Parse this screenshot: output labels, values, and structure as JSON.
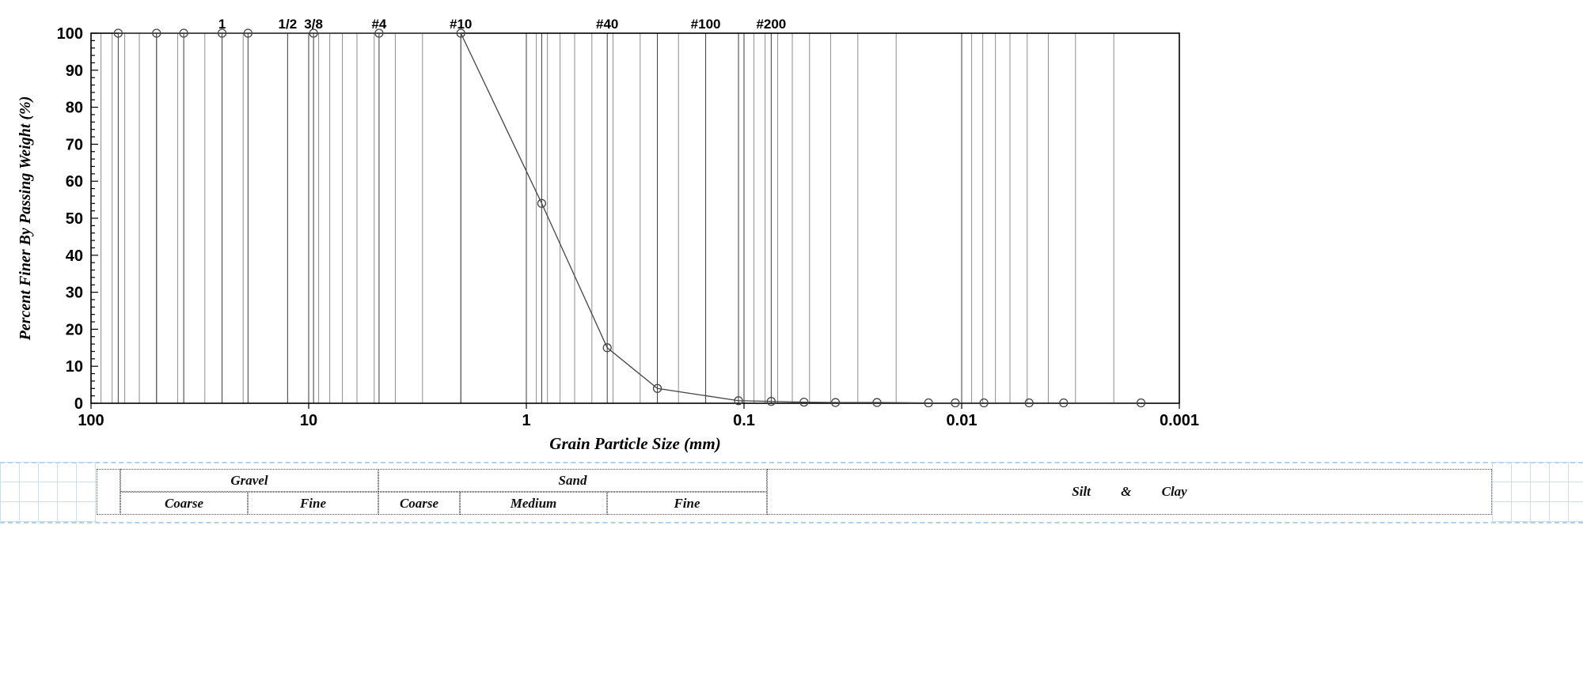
{
  "chart_data": {
    "type": "line",
    "title": "",
    "xlabel": "Grain Particle Size (mm)",
    "ylabel": "Percent Finer By Passing Weight (%)",
    "x_scale": "log-reversed",
    "xlim": [
      100,
      0.001
    ],
    "ylim": [
      0,
      100
    ],
    "grid": "vertical-log",
    "legend": "none",
    "x_ticks": [
      "100",
      "10",
      "1",
      "0.1",
      "0.01",
      "0.001"
    ],
    "x_tick_values": [
      100,
      10,
      1,
      0.1,
      0.01,
      0.001
    ],
    "y_ticks": [
      0,
      10,
      20,
      30,
      40,
      50,
      60,
      70,
      80,
      90,
      100
    ],
    "sieve_labels": [
      {
        "label": "1",
        "size_mm": 25
      },
      {
        "label": "1/2",
        "size_mm": 12.5
      },
      {
        "label": "3/8",
        "size_mm": 9.5
      },
      {
        "label": "#4",
        "size_mm": 4.75
      },
      {
        "label": "#10",
        "size_mm": 2
      },
      {
        "label": "#40",
        "size_mm": 0.425
      },
      {
        "label": "#100",
        "size_mm": 0.15
      },
      {
        "label": "#200",
        "size_mm": 0.075
      }
    ],
    "sieve_gridline_sizes_mm": [
      75,
      50,
      37.5,
      25,
      19,
      12.5,
      9.5,
      4.75,
      2,
      0.85,
      0.425,
      0.25,
      0.15,
      0.106,
      0.075
    ],
    "series": [
      {
        "name": "sample-gradation",
        "marker": "open-circle",
        "points": [
          [
            75,
            100
          ],
          [
            50,
            100
          ],
          [
            37.5,
            100
          ],
          [
            25,
            100
          ],
          [
            19,
            100
          ],
          [
            9.5,
            100
          ],
          [
            4.75,
            100
          ],
          [
            2,
            100
          ],
          [
            0.85,
            54
          ],
          [
            0.425,
            15
          ],
          [
            0.25,
            4
          ],
          [
            0.106,
            0.7
          ],
          [
            0.075,
            0.5
          ],
          [
            0.053,
            0.3
          ],
          [
            0.038,
            0.2
          ],
          [
            0.0245,
            0.2
          ],
          [
            0.0142,
            0.1
          ],
          [
            0.0107,
            0.1
          ],
          [
            0.0079,
            0.1
          ],
          [
            0.0049,
            0.1
          ],
          [
            0.0034,
            0.1
          ],
          [
            0.0015,
            0.1
          ]
        ]
      }
    ]
  },
  "classification_table": {
    "groups": [
      {
        "label": "Gravel",
        "subdivisions": [
          "Coarse",
          "Fine"
        ]
      },
      {
        "label": "Sand",
        "subdivisions": [
          "Coarse",
          "Medium",
          "Fine"
        ]
      },
      {
        "label": "Silt & Clay",
        "subdivisions": []
      }
    ]
  }
}
